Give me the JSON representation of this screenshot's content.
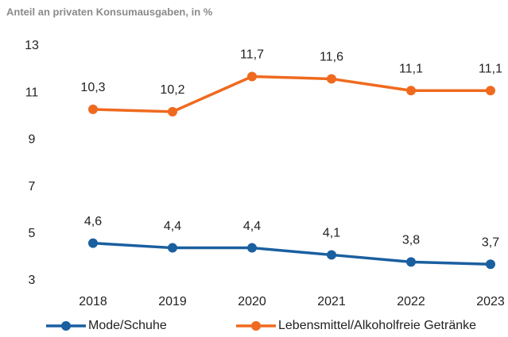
{
  "chart_data": {
    "type": "line",
    "title": "Anteil an privaten Konsumausgaben, in %",
    "categories": [
      "2018",
      "2019",
      "2020",
      "2021",
      "2022",
      "2023"
    ],
    "series": [
      {
        "name": "Mode/Schuhe",
        "color": "#1a5fa0",
        "values": [
          4.6,
          4.4,
          4.4,
          4.1,
          3.8,
          3.7
        ],
        "value_labels": [
          "4,6",
          "4,4",
          "4,4",
          "4,1",
          "3,8",
          "3,7"
        ]
      },
      {
        "name": "Lebensmittel/Alkoholfreie Getränke",
        "color": "#ef6a1f",
        "values": [
          10.3,
          10.2,
          11.7,
          11.6,
          11.1,
          11.1
        ],
        "value_labels": [
          "10,3",
          "10,2",
          "11,7",
          "11,6",
          "11,1",
          "11,1"
        ]
      }
    ],
    "ylim": [
      3,
      13
    ],
    "yticks": [
      3,
      5,
      7,
      9,
      11,
      13
    ],
    "grid": false,
    "legend": "bottom"
  }
}
